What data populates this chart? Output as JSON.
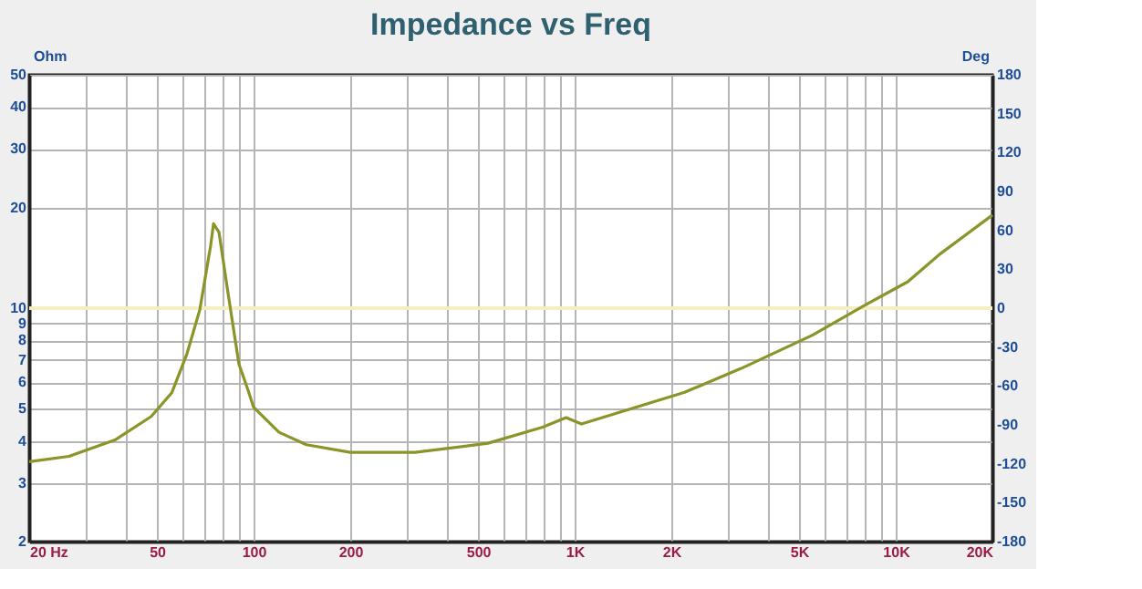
{
  "chart_data": {
    "type": "line",
    "title": "Impedance vs Freq",
    "ylabel": "Ohm",
    "y2label": "Deg",
    "x": [
      20,
      26.6,
      37,
      48,
      55.6,
      62,
      68,
      73.5,
      75,
      78,
      83,
      90,
      96,
      100,
      120,
      146,
      200,
      318,
      537,
      795,
      940,
      1050,
      1500,
      2200,
      3300,
      5500,
      8000,
      10900,
      13700,
      20000
    ],
    "series": [
      {
        "color": "#8a9428",
        "values": [
          3.47,
          3.6,
          4.03,
          4.74,
          5.58,
          7.3,
          9.9,
          15.4,
          17.9,
          16.9,
          11.3,
          6.8,
          5.7,
          5.05,
          4.25,
          3.9,
          3.7,
          3.7,
          3.94,
          4.4,
          4.7,
          4.5,
          5.0,
          5.6,
          6.6,
          8.3,
          10.2,
          12.0,
          14.5,
          19.0
        ]
      }
    ],
    "log": "xy",
    "xlim": [
      20,
      20000
    ],
    "ylim": [
      2,
      50
    ],
    "y2lim": [
      -180,
      180
    ],
    "xticks": [
      {
        "value": 20,
        "label": "20  Hz"
      },
      {
        "value": 30,
        "label": null
      },
      {
        "value": 40,
        "label": null
      },
      50,
      {
        "value": 60,
        "label": null
      },
      {
        "value": 70,
        "label": null
      },
      {
        "value": 80,
        "label": null
      },
      {
        "value": 90,
        "label": null
      },
      100,
      200,
      {
        "value": 300,
        "label": null
      },
      {
        "value": 400,
        "label": null
      },
      500,
      {
        "value": 600,
        "label": null
      },
      {
        "value": 700,
        "label": null
      },
      {
        "value": 800,
        "label": null
      },
      {
        "value": 900,
        "label": null
      },
      {
        "value": 1000,
        "label": "1K"
      },
      {
        "value": 2000,
        "label": "2K"
      },
      {
        "value": 3000,
        "label": null
      },
      {
        "value": 4000,
        "label": null
      },
      {
        "value": 5000,
        "label": "5K"
      },
      {
        "value": 6000,
        "label": null
      },
      {
        "value": 7000,
        "label": null
      },
      {
        "value": 8000,
        "label": null
      },
      {
        "value": 9000,
        "label": null
      },
      {
        "value": 10000,
        "label": "10K"
      },
      {
        "value": 20000,
        "label": "20K"
      }
    ],
    "yticks": [
      2,
      3,
      4,
      5,
      6,
      7,
      8,
      9,
      10,
      20,
      30,
      40,
      50
    ],
    "y2ticks": [
      -180,
      -150,
      -120,
      -90,
      -60,
      -30,
      0,
      30,
      60,
      90,
      120,
      150,
      180
    ],
    "ref_lines": [
      {
        "axis": "y2",
        "value": 0,
        "label": null,
        "color": "#f3efc2"
      }
    ],
    "grid": true,
    "marker": "none",
    "line_style": "solid"
  }
}
